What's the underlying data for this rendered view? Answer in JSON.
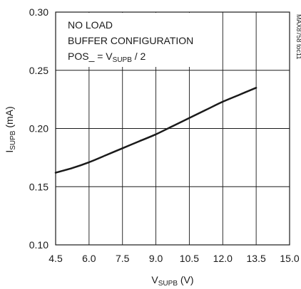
{
  "chart_data": {
    "type": "line",
    "x_range": [
      4.5,
      15.0
    ],
    "y_range": [
      0.1,
      0.3
    ],
    "x_ticks": [
      "4.5",
      "6.0",
      "7.5",
      "9.0",
      "10.5",
      "12.0",
      "13.5",
      "15.0"
    ],
    "y_ticks": [
      "0.10",
      "0.15",
      "0.20",
      "0.25",
      "0.30"
    ],
    "xlabel": {
      "main": "V",
      "sub": "SUPB",
      "unit": " (V)"
    },
    "ylabel": {
      "main": "I",
      "sub": "SUPB",
      "unit": " (mA)"
    },
    "annotations": {
      "line1": "NO LOAD",
      "line2": "BUFFER CONFIGURATION",
      "line3_prefix": "POS_ = V",
      "line3_sub": "SUPB",
      "line3_suffix": " / 2"
    },
    "figure_id": "MAX8758 toc11",
    "grid": true,
    "series": [
      {
        "x": [
          4.5,
          5.25,
          6.0,
          6.75,
          7.5,
          8.25,
          9.0,
          9.75,
          10.5,
          11.25,
          12.0,
          12.75,
          13.5
        ],
        "y": [
          0.162,
          0.166,
          0.171,
          0.177,
          0.183,
          0.189,
          0.195,
          0.202,
          0.209,
          0.216,
          0.223,
          0.229,
          0.235
        ]
      }
    ],
    "line_color": "#1a1a1a",
    "grid_color": "#1a1a1a"
  }
}
